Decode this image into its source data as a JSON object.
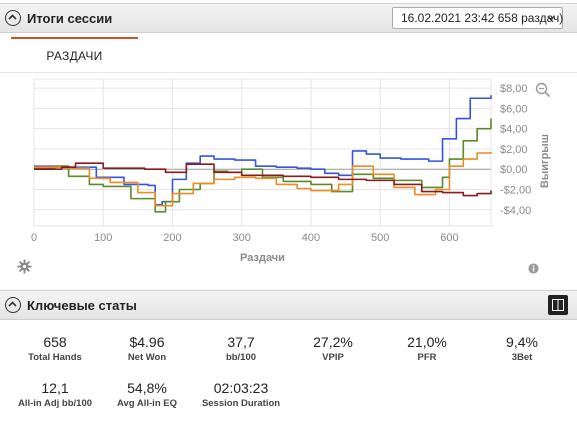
{
  "session_panel": {
    "title": "Итоги сессии",
    "session_select_value": "16.02.2021 23:42 658 раздач)"
  },
  "tabs": [
    {
      "label": "РАЗДАЧИ"
    }
  ],
  "chart_data": {
    "type": "line",
    "xlabel": "Раздачи",
    "ylabel": "Выигрыш",
    "xlim": [
      0,
      660
    ],
    "ylim": [
      -5.6,
      8.9
    ],
    "x_ticks": [
      0,
      100,
      200,
      300,
      400,
      500,
      600
    ],
    "y_ticks": [
      8,
      6,
      4,
      2,
      0,
      -2,
      -4
    ],
    "y_tick_labels": [
      "$8,00",
      "$6,00",
      "$4,00",
      "$2,00",
      "$0,00",
      "-$2,00",
      "-$4,00"
    ],
    "grid": true,
    "series": [
      {
        "color": "#3355dd",
        "points": [
          [
            0,
            0.3
          ],
          [
            50,
            0.2
          ],
          [
            90,
            -0.8
          ],
          [
            130,
            -1.5
          ],
          [
            150,
            -1.5
          ],
          [
            165,
            -1.6
          ],
          [
            175,
            -3.5
          ],
          [
            185,
            -3.2
          ],
          [
            200,
            -1.0
          ],
          [
            220,
            0.6
          ],
          [
            240,
            1.3
          ],
          [
            260,
            1.0
          ],
          [
            290,
            0.9
          ],
          [
            320,
            0.3
          ],
          [
            350,
            0.2
          ],
          [
            380,
            0.1
          ],
          [
            400,
            0.0
          ],
          [
            420,
            -0.4
          ],
          [
            440,
            -0.6
          ],
          [
            460,
            1.8
          ],
          [
            480,
            1.5
          ],
          [
            500,
            1.1
          ],
          [
            530,
            1.0
          ],
          [
            570,
            0.8
          ],
          [
            590,
            3.0
          ],
          [
            610,
            5.0
          ],
          [
            630,
            7.0
          ],
          [
            660,
            7.3
          ]
        ]
      },
      {
        "color": "#5a8a2a",
        "points": [
          [
            0,
            0.1
          ],
          [
            30,
            0.3
          ],
          [
            50,
            -0.7
          ],
          [
            80,
            -1.5
          ],
          [
            100,
            -1.7
          ],
          [
            140,
            -2.9
          ],
          [
            175,
            -4.2
          ],
          [
            190,
            -3.2
          ],
          [
            210,
            -2.0
          ],
          [
            240,
            -1.4
          ],
          [
            260,
            -0.2
          ],
          [
            280,
            -0.3
          ],
          [
            300,
            0.0
          ],
          [
            330,
            -0.8
          ],
          [
            360,
            -1.2
          ],
          [
            400,
            -1.5
          ],
          [
            430,
            -2.2
          ],
          [
            460,
            -0.5
          ],
          [
            490,
            -0.9
          ],
          [
            520,
            -1.1
          ],
          [
            560,
            -1.8
          ],
          [
            590,
            -0.8
          ],
          [
            600,
            1.0
          ],
          [
            620,
            2.8
          ],
          [
            640,
            4.0
          ],
          [
            660,
            5.0
          ]
        ]
      },
      {
        "color": "#f08a24",
        "points": [
          [
            0,
            0.2
          ],
          [
            40,
            0.1
          ],
          [
            80,
            -0.9
          ],
          [
            110,
            -1.3
          ],
          [
            150,
            -2.3
          ],
          [
            175,
            -3.6
          ],
          [
            200,
            -2.4
          ],
          [
            230,
            -1.4
          ],
          [
            260,
            -1.0
          ],
          [
            290,
            -0.8
          ],
          [
            320,
            -0.9
          ],
          [
            350,
            -1.5
          ],
          [
            380,
            -1.9
          ],
          [
            400,
            -2.1
          ],
          [
            440,
            -1.5
          ],
          [
            460,
            0.3
          ],
          [
            490,
            -0.5
          ],
          [
            520,
            -1.8
          ],
          [
            550,
            -2.5
          ],
          [
            580,
            -2.0
          ],
          [
            600,
            0.3
          ],
          [
            620,
            1.0
          ],
          [
            640,
            1.6
          ],
          [
            660,
            1.7
          ]
        ]
      },
      {
        "color": "#8b1a1a",
        "points": [
          [
            0,
            0.0
          ],
          [
            40,
            0.2
          ],
          [
            60,
            0.6
          ],
          [
            100,
            0.1
          ],
          [
            130,
            0.1
          ],
          [
            160,
            0.0
          ],
          [
            190,
            -0.3
          ],
          [
            220,
            0.5
          ],
          [
            260,
            -0.3
          ],
          [
            300,
            -0.6
          ],
          [
            330,
            -0.6
          ],
          [
            360,
            -0.7
          ],
          [
            400,
            -0.8
          ],
          [
            440,
            -1.0
          ],
          [
            480,
            -1.1
          ],
          [
            520,
            -1.5
          ],
          [
            560,
            -2.2
          ],
          [
            590,
            -2.3
          ],
          [
            620,
            -2.6
          ],
          [
            640,
            -2.4
          ],
          [
            660,
            -2.1
          ]
        ]
      }
    ]
  },
  "stats_panel": {
    "title": "Ключевые статы",
    "row1": [
      {
        "value": "658",
        "label": "Total Hands"
      },
      {
        "value": "$4.96",
        "label": "Net Won"
      },
      {
        "value": "37,7",
        "label": "bb/100"
      },
      {
        "value": "27,2%",
        "label": "VPIP"
      },
      {
        "value": "21,0%",
        "label": "PFR"
      },
      {
        "value": "9,4%",
        "label": "3Bet"
      }
    ],
    "row2": [
      {
        "value": "12,1",
        "label": "All-in Adj bb/100"
      },
      {
        "value": "54,8%",
        "label": "Avg All-in EQ"
      },
      {
        "value": "02:03:23",
        "label": "Session Duration"
      }
    ]
  },
  "icons": [
    "chevron-up-icon",
    "chevron-down-icon",
    "zoom-out-icon",
    "gear-icon",
    "info-icon",
    "window-toggle-icon"
  ]
}
